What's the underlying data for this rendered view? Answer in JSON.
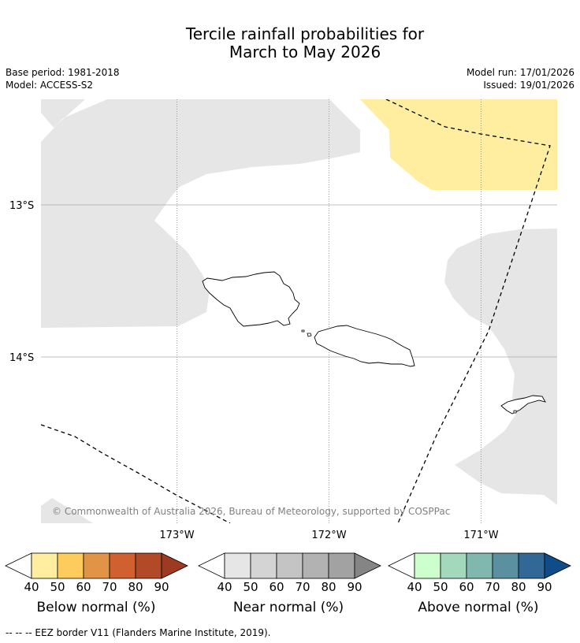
{
  "title_line1": "Tercile rainfall probabilities for",
  "title_line2": "March to May 2026",
  "base_period": "Base period: 1981-2018",
  "model": "Model: ACCESS-S2",
  "model_run": "Model run: 17/01/2026",
  "issued": "Issued: 19/01/2026",
  "map": {
    "lat_labels": [
      "13°S",
      "14°S"
    ],
    "lon_labels": [
      "173°W",
      "172°W",
      "171°W"
    ],
    "copyright": "© Commonwealth of Australia 2026, Bureau of Meteorology, supported by COSPPac",
    "colors": {
      "near_normal_fill": "#e6e6e6",
      "below_normal_fill": "#ffeda0",
      "land_outline": "#000000",
      "eez_border": "#000000",
      "gridline": "#888888"
    }
  },
  "colorbars": [
    {
      "name": "below",
      "label": "Below normal (%)",
      "ticks": [
        "40",
        "50",
        "60",
        "70",
        "80",
        "90"
      ],
      "colors": [
        "#ffeda0",
        "#fecc5c",
        "#e29446",
        "#d06030",
        "#b24a28",
        "#9e3a22"
      ]
    },
    {
      "name": "near",
      "label": "Near normal (%)",
      "ticks": [
        "40",
        "50",
        "60",
        "70",
        "80",
        "90"
      ],
      "colors": [
        "#e6e6e6",
        "#d4d4d4",
        "#c4c4c4",
        "#b2b2b2",
        "#a2a2a2",
        "#858585"
      ]
    },
    {
      "name": "above",
      "label": "Above normal (%)",
      "ticks": [
        "40",
        "50",
        "60",
        "70",
        "80",
        "90"
      ],
      "colors": [
        "#ccffcc",
        "#a4d8bc",
        "#80b8b0",
        "#5a90a0",
        "#326896",
        "#104c88"
      ]
    }
  ],
  "footnote": "--  --  -- EEZ border V11 (Flanders Marine Institute, 2019)."
}
